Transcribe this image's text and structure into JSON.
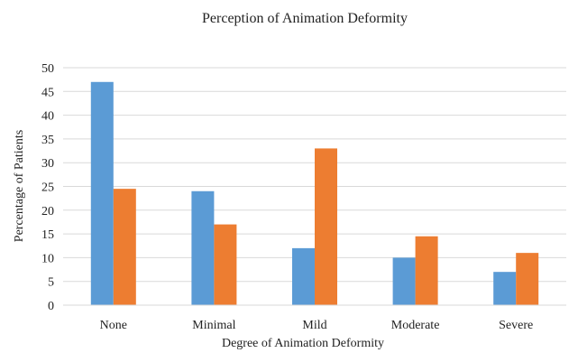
{
  "chart_data": {
    "type": "bar",
    "title": "Perception of Animation Deformity",
    "xlabel": "Degree of Animation Deformity",
    "ylabel": "Percentage of Patients",
    "categories": [
      "None",
      "Minimal",
      "Mild",
      "Moderate",
      "Severe"
    ],
    "series": [
      {
        "values": [
          47,
          24,
          12,
          10,
          7
        ],
        "color": "#5b9bd5"
      },
      {
        "values": [
          24.5,
          17,
          33,
          14.5,
          11
        ],
        "color": "#ed7d31"
      }
    ],
    "ylim": [
      0,
      50
    ],
    "yticks": [
      "0",
      "5",
      "10",
      "15",
      "20",
      "25",
      "30",
      "35",
      "40",
      "45",
      "50"
    ],
    "grid": true,
    "legend": "none"
  }
}
